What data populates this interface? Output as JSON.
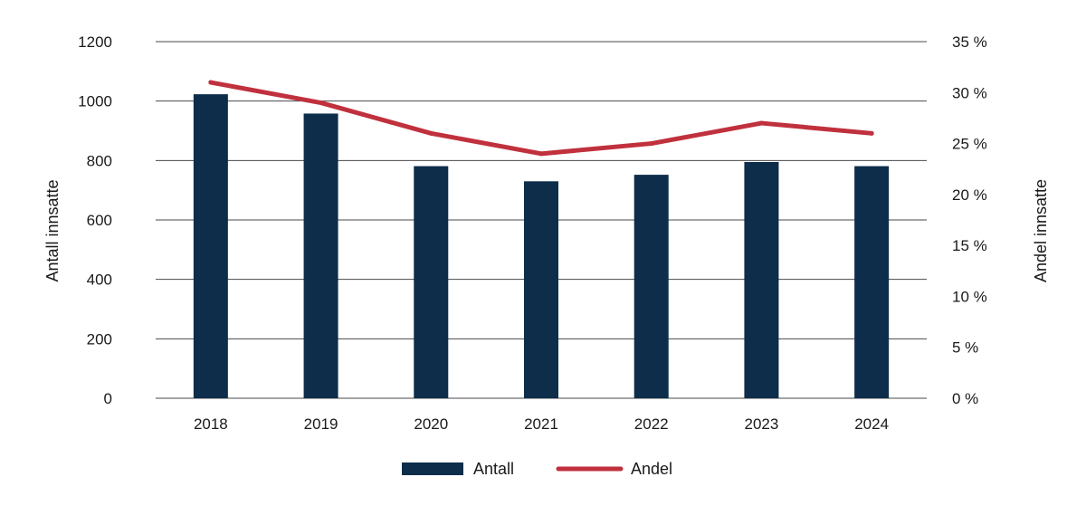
{
  "chart_data": {
    "type": "bar",
    "categories": [
      "2018",
      "2019",
      "2020",
      "2021",
      "2022",
      "2023",
      "2024"
    ],
    "series": [
      {
        "name": "Antall",
        "type": "bar",
        "axis": "left",
        "color": "#0d2d4a",
        "values": [
          1023,
          958,
          781,
          730,
          752,
          795,
          781
        ]
      },
      {
        "name": "Andel",
        "type": "line",
        "axis": "right",
        "color": "#c0313d",
        "values": [
          31,
          29,
          26,
          24,
          25,
          27,
          26
        ]
      }
    ],
    "ylabel": "Antall innsatte",
    "y2label": "Andel innsatte",
    "ylim": [
      0,
      1200
    ],
    "y2lim": [
      0,
      35
    ],
    "yticks": [
      "0",
      "200",
      "400",
      "600",
      "800",
      "1000",
      "1200"
    ],
    "y2ticks": [
      "0 %",
      "5 %",
      "10 %",
      "15 %",
      "20 %",
      "25 %",
      "30 %",
      "35 %"
    ],
    "grid": true,
    "legend_position": "bottom"
  }
}
